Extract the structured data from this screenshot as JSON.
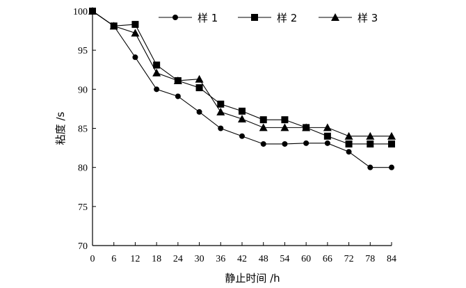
{
  "chart_data": {
    "type": "line",
    "xlabel": "静止时间 /h",
    "ylabel": "粘度 /s",
    "xlim": [
      0,
      84
    ],
    "ylim": [
      70,
      100
    ],
    "xticks": [
      0,
      6,
      12,
      18,
      24,
      30,
      36,
      42,
      48,
      54,
      60,
      66,
      72,
      78,
      84
    ],
    "yticks": [
      70,
      75,
      80,
      85,
      90,
      95,
      100
    ],
    "grid": false,
    "legend_position": "top-right",
    "series": [
      {
        "name": "样 1",
        "marker": "circle",
        "x": [
          0,
          6,
          12,
          18,
          24,
          30,
          36,
          42,
          48,
          54,
          60,
          66,
          72,
          78,
          84
        ],
        "y": [
          100,
          98.1,
          94.1,
          90.0,
          89.1,
          87.1,
          85.0,
          84.0,
          83.0,
          83.0,
          83.1,
          83.1,
          82.0,
          80.0,
          80.0
        ]
      },
      {
        "name": "样 2",
        "marker": "square",
        "x": [
          0,
          6,
          12,
          18,
          24,
          30,
          36,
          42,
          48,
          54,
          60,
          66,
          72,
          78,
          84
        ],
        "y": [
          100,
          98.1,
          98.3,
          93.1,
          91.1,
          90.2,
          88.1,
          87.2,
          86.1,
          86.1,
          85.1,
          84.0,
          83.0,
          83.0,
          83.0
        ]
      },
      {
        "name": "样 3",
        "marker": "triangle",
        "x": [
          0,
          6,
          12,
          18,
          24,
          30,
          36,
          42,
          48,
          54,
          60,
          66,
          72,
          78,
          84
        ],
        "y": [
          100,
          98.1,
          97.2,
          92.1,
          91.1,
          91.3,
          87.1,
          86.2,
          85.1,
          85.1,
          85.1,
          85.1,
          84.0,
          84.0,
          84.0
        ]
      }
    ]
  }
}
